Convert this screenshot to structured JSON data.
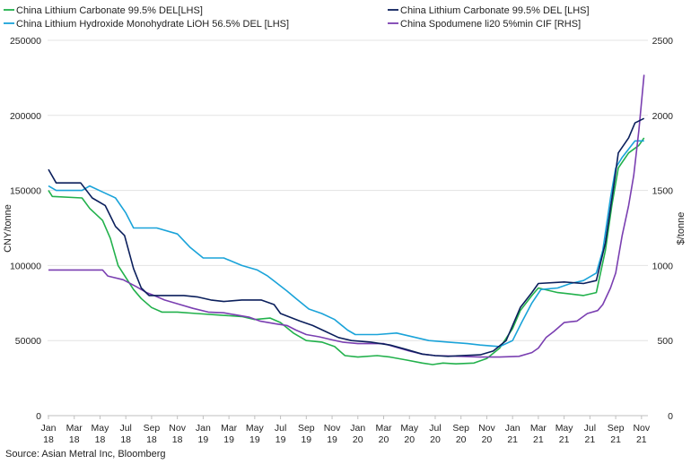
{
  "chart_data": {
    "type": "line",
    "xlabel": "",
    "y_left_label": "CNY/tonne",
    "y_right_label": "$/tonne",
    "y_left_range": [
      0,
      250000
    ],
    "y_right_range": [
      0,
      2500
    ],
    "y_left_ticks": [
      "0",
      "50000",
      "100000",
      "150000",
      "200000",
      "250000"
    ],
    "y_right_ticks": [
      "0",
      "500",
      "1000",
      "1500",
      "2000",
      "2500"
    ],
    "x_range": [
      0,
      46.5
    ],
    "x_ticks": [
      {
        "x": 0,
        "l1": "Jan",
        "l2": "18"
      },
      {
        "x": 2,
        "l1": "Mar",
        "l2": "18"
      },
      {
        "x": 4,
        "l1": "May",
        "l2": "18"
      },
      {
        "x": 6,
        "l1": "Jul",
        "l2": "18"
      },
      {
        "x": 8,
        "l1": "Sep",
        "l2": "18"
      },
      {
        "x": 10,
        "l1": "Nov",
        "l2": "18"
      },
      {
        "x": 12,
        "l1": "Jan",
        "l2": "19"
      },
      {
        "x": 14,
        "l1": "Mar",
        "l2": "19"
      },
      {
        "x": 16,
        "l1": "May",
        "l2": "19"
      },
      {
        "x": 18,
        "l1": "Jul",
        "l2": "19"
      },
      {
        "x": 20,
        "l1": "Sep",
        "l2": "19"
      },
      {
        "x": 22,
        "l1": "Nov",
        "l2": "19"
      },
      {
        "x": 24,
        "l1": "Jan",
        "l2": "20"
      },
      {
        "x": 26,
        "l1": "Mar",
        "l2": "20"
      },
      {
        "x": 28,
        "l1": "May",
        "l2": "20"
      },
      {
        "x": 30,
        "l1": "Jul",
        "l2": "20"
      },
      {
        "x": 32,
        "l1": "Sep",
        "l2": "20"
      },
      {
        "x": 34,
        "l1": "Nov",
        "l2": "20"
      },
      {
        "x": 36,
        "l1": "Jan",
        "l2": "21"
      },
      {
        "x": 38,
        "l1": "Mar",
        "l2": "21"
      },
      {
        "x": 40,
        "l1": "May",
        "l2": "21"
      },
      {
        "x": 42,
        "l1": "Jul",
        "l2": "21"
      },
      {
        "x": 44,
        "l1": "Sep",
        "l2": "21"
      },
      {
        "x": 46,
        "l1": "Nov",
        "l2": "21"
      }
    ],
    "legend_position": "top",
    "series": [
      {
        "name": "China Lithium Carbonate 99.5% DEL[LHS]",
        "axis": "left",
        "color": "#22b14c",
        "points": [
          [
            0,
            150000
          ],
          [
            0.3,
            146000
          ],
          [
            2.6,
            145000
          ],
          [
            3.2,
            138000
          ],
          [
            4.2,
            130000
          ],
          [
            4.8,
            118000
          ],
          [
            5.4,
            100000
          ],
          [
            6.0,
            92000
          ],
          [
            6.6,
            84000
          ],
          [
            7.2,
            78000
          ],
          [
            8.0,
            72000
          ],
          [
            8.8,
            69000
          ],
          [
            10.0,
            69000
          ],
          [
            11.5,
            68000
          ],
          [
            13.2,
            67000
          ],
          [
            15.0,
            66000
          ],
          [
            16.0,
            64000
          ],
          [
            17.2,
            65000
          ],
          [
            18.0,
            62000
          ],
          [
            19.0,
            55000
          ],
          [
            20.0,
            50000
          ],
          [
            21.2,
            49000
          ],
          [
            22.2,
            46000
          ],
          [
            23.0,
            40000
          ],
          [
            24.0,
            39000
          ],
          [
            25.5,
            40000
          ],
          [
            26.5,
            39000
          ],
          [
            27.8,
            37000
          ],
          [
            29.0,
            35000
          ],
          [
            29.8,
            34000
          ],
          [
            30.6,
            35000
          ],
          [
            31.6,
            34500
          ],
          [
            33.0,
            35000
          ],
          [
            34.0,
            38000
          ],
          [
            35.0,
            45000
          ],
          [
            36.0,
            58000
          ],
          [
            36.6,
            70000
          ],
          [
            37.5,
            80000
          ],
          [
            38.0,
            85000
          ],
          [
            39.5,
            82000
          ],
          [
            40.5,
            81000
          ],
          [
            41.5,
            80000
          ],
          [
            42.5,
            82000
          ],
          [
            43.2,
            110000
          ],
          [
            43.7,
            140000
          ],
          [
            44.2,
            165000
          ],
          [
            45.0,
            175000
          ],
          [
            45.8,
            180000
          ],
          [
            46.2,
            185000
          ]
        ]
      },
      {
        "name": "China Lithium Carbonate 99.5% DEL [LHS]",
        "axis": "left",
        "color": "#0b1f5c",
        "points": [
          [
            0,
            164000
          ],
          [
            0.6,
            155000
          ],
          [
            2.5,
            155000
          ],
          [
            3.4,
            145000
          ],
          [
            4.4,
            140000
          ],
          [
            5.2,
            126000
          ],
          [
            5.9,
            120000
          ],
          [
            6.6,
            98000
          ],
          [
            7.2,
            85000
          ],
          [
            7.8,
            80000
          ],
          [
            9.0,
            80000
          ],
          [
            10.5,
            80000
          ],
          [
            11.6,
            79000
          ],
          [
            12.6,
            77000
          ],
          [
            13.6,
            76000
          ],
          [
            15.0,
            77000
          ],
          [
            16.5,
            77000
          ],
          [
            17.5,
            74000
          ],
          [
            18.0,
            68000
          ],
          [
            19.5,
            63000
          ],
          [
            20.5,
            60000
          ],
          [
            21.5,
            56000
          ],
          [
            22.5,
            52000
          ],
          [
            23.5,
            50000
          ],
          [
            25.0,
            49000
          ],
          [
            26.5,
            47000
          ],
          [
            27.8,
            44000
          ],
          [
            29.0,
            41000
          ],
          [
            30.0,
            40000
          ],
          [
            31.0,
            39500
          ],
          [
            32.0,
            40000
          ],
          [
            33.5,
            40500
          ],
          [
            34.5,
            43000
          ],
          [
            35.5,
            50000
          ],
          [
            36.0,
            60000
          ],
          [
            36.6,
            72000
          ],
          [
            37.5,
            82000
          ],
          [
            38.0,
            88000
          ],
          [
            40.0,
            89000
          ],
          [
            41.5,
            88000
          ],
          [
            42.5,
            90000
          ],
          [
            43.2,
            115000
          ],
          [
            43.8,
            150000
          ],
          [
            44.2,
            175000
          ],
          [
            45.0,
            185000
          ],
          [
            45.5,
            195000
          ],
          [
            46.2,
            198000
          ]
        ]
      },
      {
        "name": "China Lithium Hydroxide Monohydrate LiOH 56.5% DEL [LHS]",
        "axis": "left",
        "color": "#1aa3d9",
        "points": [
          [
            0,
            153000
          ],
          [
            0.6,
            150000
          ],
          [
            2.6,
            150000
          ],
          [
            3.2,
            153000
          ],
          [
            4.2,
            149000
          ],
          [
            5.2,
            145000
          ],
          [
            6.0,
            135000
          ],
          [
            6.6,
            125000
          ],
          [
            8.4,
            125000
          ],
          [
            10.0,
            121000
          ],
          [
            11.0,
            112000
          ],
          [
            12.0,
            105000
          ],
          [
            13.6,
            105000
          ],
          [
            15.0,
            100000
          ],
          [
            16.2,
            97000
          ],
          [
            17.0,
            93000
          ],
          [
            17.6,
            89000
          ],
          [
            18.5,
            83000
          ],
          [
            19.2,
            78000
          ],
          [
            20.2,
            71000
          ],
          [
            21.2,
            68000
          ],
          [
            22.2,
            64000
          ],
          [
            23.2,
            57000
          ],
          [
            23.8,
            54000
          ],
          [
            25.5,
            54000
          ],
          [
            27.0,
            55000
          ],
          [
            28.5,
            52000
          ],
          [
            29.5,
            50000
          ],
          [
            31.0,
            49000
          ],
          [
            32.5,
            48000
          ],
          [
            33.5,
            47000
          ],
          [
            35.0,
            46000
          ],
          [
            36.0,
            50000
          ],
          [
            36.7,
            62000
          ],
          [
            37.5,
            75000
          ],
          [
            38.2,
            84000
          ],
          [
            39.5,
            85000
          ],
          [
            40.5,
            88000
          ],
          [
            41.5,
            90000
          ],
          [
            42.5,
            95000
          ],
          [
            43.0,
            110000
          ],
          [
            43.6,
            145000
          ],
          [
            44.0,
            165000
          ],
          [
            44.5,
            172000
          ],
          [
            45.5,
            183000
          ],
          [
            46.2,
            183000
          ]
        ]
      },
      {
        "name": "China Spodumene li20 5%min CIF [RHS]",
        "axis": "right",
        "color": "#7a3fb1",
        "points": [
          [
            0,
            970
          ],
          [
            4.2,
            970
          ],
          [
            4.6,
            930
          ],
          [
            5.8,
            905
          ],
          [
            6.8,
            860
          ],
          [
            7.6,
            820
          ],
          [
            8.2,
            800
          ],
          [
            9.0,
            770
          ],
          [
            10.0,
            745
          ],
          [
            11.2,
            715
          ],
          [
            12.4,
            690
          ],
          [
            13.6,
            685
          ],
          [
            14.6,
            670
          ],
          [
            15.6,
            655
          ],
          [
            16.4,
            630
          ],
          [
            17.6,
            612
          ],
          [
            18.5,
            600
          ],
          [
            19.2,
            570
          ],
          [
            20.0,
            540
          ],
          [
            21.0,
            525
          ],
          [
            22.0,
            505
          ],
          [
            22.8,
            490
          ],
          [
            24.0,
            480
          ],
          [
            26.0,
            480
          ],
          [
            27.0,
            455
          ],
          [
            28.0,
            430
          ],
          [
            29.0,
            410
          ],
          [
            30.0,
            400
          ],
          [
            32.0,
            395
          ],
          [
            33.5,
            390
          ],
          [
            35.0,
            390
          ],
          [
            36.5,
            395
          ],
          [
            37.5,
            420
          ],
          [
            38.0,
            450
          ],
          [
            38.6,
            520
          ],
          [
            39.2,
            560
          ],
          [
            40.0,
            620
          ],
          [
            41.0,
            630
          ],
          [
            41.8,
            680
          ],
          [
            42.6,
            700
          ],
          [
            43.0,
            740
          ],
          [
            43.6,
            850
          ],
          [
            44.0,
            950
          ],
          [
            44.5,
            1200
          ],
          [
            45.0,
            1400
          ],
          [
            45.4,
            1600
          ],
          [
            45.8,
            1900
          ],
          [
            46.2,
            2270
          ]
        ]
      }
    ],
    "source": "Source: Asian Metral Inc, Bloomberg"
  }
}
